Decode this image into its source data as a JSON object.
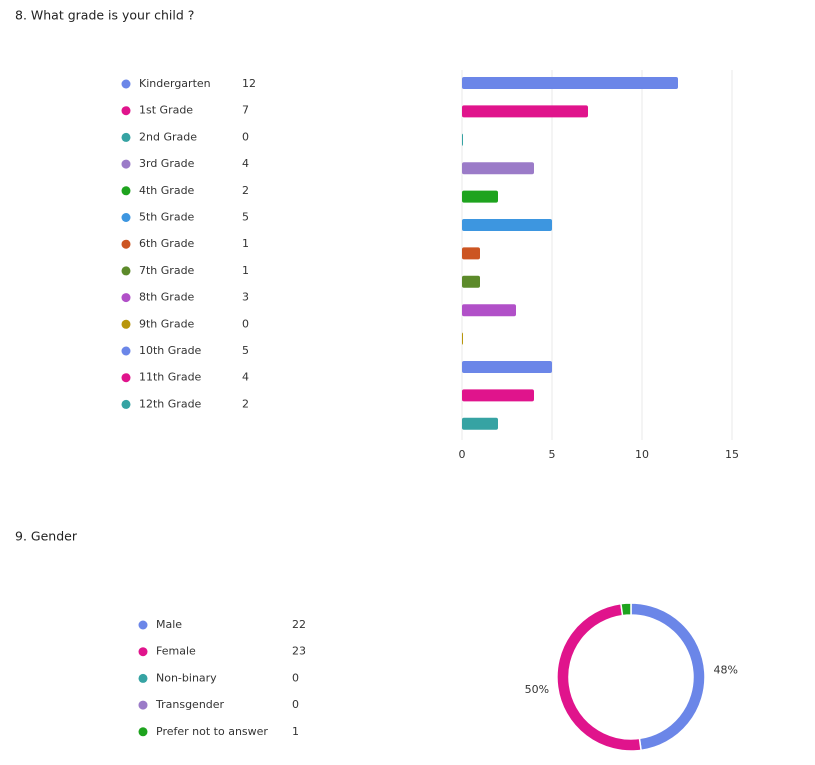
{
  "chart_data": [
    {
      "type": "bar",
      "title": "8. What grade is your child ?",
      "categories": [
        "Kindergarten",
        "1st Grade",
        "2nd Grade",
        "3rd Grade",
        "4th Grade",
        "5th Grade",
        "6th Grade",
        "7th Grade",
        "8th Grade",
        "9th Grade",
        "10th Grade",
        "11th Grade",
        "12th Grade"
      ],
      "values": [
        12,
        7,
        0,
        4,
        2,
        5,
        1,
        1,
        3,
        0,
        5,
        4,
        2
      ],
      "colors": [
        "#6b86e8",
        "#e0148c",
        "#36a3a3",
        "#9b7bc8",
        "#1ea31e",
        "#3d96e0",
        "#cc5522",
        "#5c8a2a",
        "#b150c8",
        "#b8960c",
        "#6b86e8",
        "#e0148c",
        "#36a3a3"
      ],
      "xlim": [
        0,
        15
      ],
      "xticks": [
        0,
        5,
        10,
        15
      ],
      "grid": true
    },
    {
      "type": "donut",
      "title": "9. Gender",
      "categories": [
        "Male",
        "Female",
        "Non-binary",
        "Transgender",
        "Prefer not to answer"
      ],
      "values": [
        22,
        23,
        0,
        0,
        1
      ],
      "slice_labels": [
        "48%",
        "50%",
        null,
        null,
        null
      ],
      "colors": [
        "#6b86e8",
        "#e0148c",
        "#36a3a3",
        "#9b7bc8",
        "#1ea31e"
      ]
    }
  ]
}
